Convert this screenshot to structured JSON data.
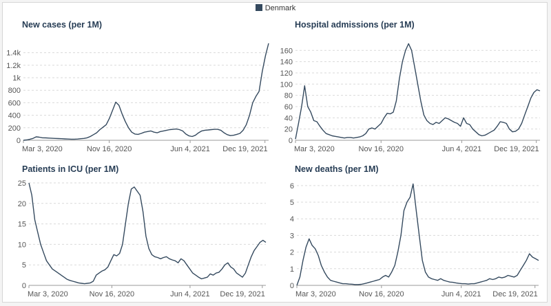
{
  "legend": {
    "label": "Denmark",
    "color": "#34495e"
  },
  "chart_data": [
    {
      "type": "line",
      "title": "New cases (per 1M)",
      "xlabel": "",
      "ylabel": "",
      "x_ticks": [
        "Mar 3, 2020",
        "Nov 16, 2020",
        "Jun 4, 2021",
        "Dec 19, 2021"
      ],
      "y_ticks": [
        "0",
        "200",
        "400",
        "600",
        "800",
        "1k",
        "1.2k",
        "1.4k"
      ],
      "ylim": [
        0,
        1550
      ],
      "grid": true,
      "series": [
        {
          "name": "Denmark",
          "color": "#34495e",
          "values": [
            0,
            5,
            15,
            30,
            55,
            50,
            40,
            38,
            35,
            32,
            30,
            28,
            25,
            22,
            20,
            18,
            18,
            20,
            25,
            30,
            40,
            60,
            90,
            120,
            170,
            210,
            250,
            350,
            480,
            610,
            560,
            420,
            300,
            200,
            130,
            100,
            95,
            110,
            130,
            140,
            150,
            130,
            120,
            140,
            150,
            160,
            170,
            175,
            180,
            170,
            150,
            100,
            70,
            60,
            80,
            120,
            150,
            160,
            165,
            170,
            175,
            175,
            160,
            120,
            90,
            75,
            80,
            95,
            110,
            160,
            250,
            400,
            600,
            700,
            780,
            1100,
            1350,
            1550
          ]
        }
      ]
    },
    {
      "type": "line",
      "title": "Hospital admissions (per 1M)",
      "xlabel": "",
      "ylabel": "",
      "x_ticks": [
        "Mar 3, 2020",
        "Nov 16, 2020",
        "Jun 4, 2021",
        "Dec 19, 2021"
      ],
      "y_ticks": [
        "0",
        "20",
        "40",
        "60",
        "80",
        "100",
        "120",
        "140",
        "160"
      ],
      "ylim": [
        0,
        175
      ],
      "grid": true,
      "series": [
        {
          "name": "Denmark",
          "color": "#34495e",
          "values": [
            2,
            30,
            60,
            97,
            60,
            50,
            35,
            33,
            25,
            18,
            12,
            10,
            8,
            7,
            6,
            5,
            4,
            5,
            5,
            4,
            5,
            6,
            8,
            12,
            20,
            22,
            20,
            25,
            30,
            40,
            48,
            47,
            50,
            70,
            110,
            140,
            160,
            172,
            160,
            130,
            100,
            70,
            45,
            35,
            30,
            28,
            32,
            30,
            35,
            40,
            38,
            35,
            32,
            30,
            25,
            40,
            30,
            28,
            20,
            15,
            10,
            8,
            9,
            12,
            15,
            18,
            25,
            33,
            32,
            30,
            20,
            15,
            16,
            20,
            30,
            45,
            60,
            75,
            85,
            90,
            88
          ]
        }
      ]
    },
    {
      "type": "line",
      "title": "Patients in ICU (per 1M)",
      "xlabel": "",
      "ylabel": "",
      "x_ticks": [
        "Mar 3, 2020",
        "Nov 16, 2020",
        "Jun 4, 2021",
        "Dec 19, 2021"
      ],
      "y_ticks": [
        "0",
        "5",
        "10",
        "15",
        "20",
        "25"
      ],
      "ylim": [
        0,
        25.5
      ],
      "grid": true,
      "series": [
        {
          "name": "Denmark",
          "color": "#34495e",
          "values": [
            25,
            22,
            16,
            13,
            10,
            8,
            6,
            5,
            4,
            3.5,
            3,
            2.5,
            2,
            1.5,
            1.2,
            1.0,
            0.8,
            0.6,
            0.5,
            0.4,
            0.5,
            0.6,
            1.0,
            2.5,
            3.0,
            3.5,
            3.8,
            4.5,
            6,
            7.5,
            7.2,
            7.8,
            10,
            15,
            20,
            23.5,
            24,
            23,
            22,
            18,
            12,
            9,
            7.5,
            7,
            6.8,
            6.5,
            6.8,
            7,
            6.5,
            6.2,
            6.0,
            5.5,
            6.5,
            6,
            5,
            4,
            3,
            2.5,
            2,
            1.6,
            1.8,
            2,
            2.8,
            2.5,
            3.0,
            3.2,
            4,
            5,
            5.5,
            4.5,
            4,
            3,
            2.5,
            2,
            3,
            5,
            7,
            8.5,
            9.5,
            10.5,
            11,
            10.5
          ]
        }
      ]
    },
    {
      "type": "line",
      "title": "New deaths (per 1M)",
      "xlabel": "",
      "ylabel": "",
      "x_ticks": [
        "Mar 3, 2020",
        "Nov 16, 2020",
        "Jun 4, 2021",
        "Dec 19, 2021"
      ],
      "y_ticks": [
        "0",
        "1",
        "2",
        "3",
        "4",
        "5",
        "6"
      ],
      "ylim": [
        0,
        6.2
      ],
      "grid": true,
      "series": [
        {
          "name": "Denmark",
          "color": "#34495e",
          "values": [
            0,
            0.5,
            1.5,
            2.3,
            2.8,
            2.4,
            2.2,
            1.8,
            1.2,
            0.8,
            0.5,
            0.3,
            0.25,
            0.2,
            0.15,
            0.1,
            0.1,
            0.08,
            0.07,
            0.05,
            0.05,
            0.06,
            0.1,
            0.15,
            0.2,
            0.25,
            0.3,
            0.35,
            0.5,
            0.6,
            0.5,
            0.8,
            1.2,
            2.0,
            3.0,
            4.5,
            5.0,
            5.3,
            6.1,
            4.5,
            3.0,
            1.5,
            0.8,
            0.5,
            0.4,
            0.35,
            0.3,
            0.4,
            0.3,
            0.25,
            0.2,
            0.18,
            0.15,
            0.12,
            0.1,
            0.1,
            0.08,
            0.1,
            0.1,
            0.15,
            0.2,
            0.25,
            0.3,
            0.4,
            0.35,
            0.4,
            0.5,
            0.45,
            0.5,
            0.6,
            0.55,
            0.5,
            0.6,
            0.9,
            1.2,
            1.5,
            1.9,
            1.7,
            1.6,
            1.5
          ]
        }
      ]
    }
  ]
}
